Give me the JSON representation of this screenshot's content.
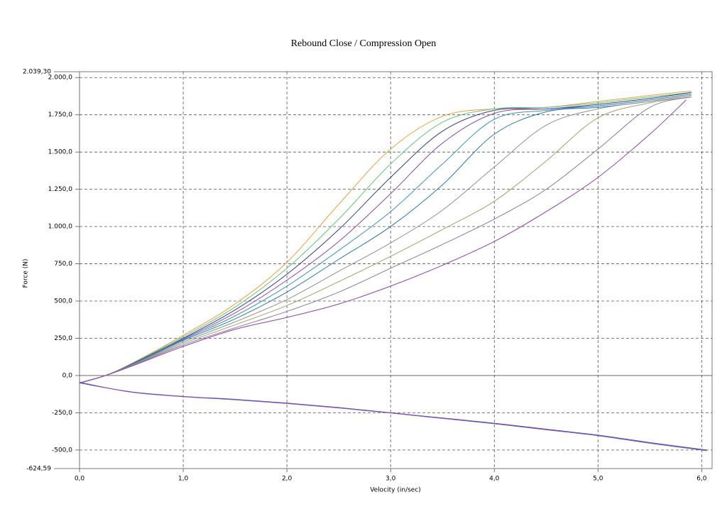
{
  "chart_data": {
    "type": "line",
    "title": "Rebound Close / Compression Open",
    "xlabel": "Velocity (in/sec)",
    "ylabel": "Force (N)",
    "xlim": [
      0,
      6.1
    ],
    "ylim": [
      -624.59,
      2039.3
    ],
    "xticks": [
      {
        "value": 0,
        "label": "0,0"
      },
      {
        "value": 1,
        "label": "1,0"
      },
      {
        "value": 2,
        "label": "2,0"
      },
      {
        "value": 3,
        "label": "3,0"
      },
      {
        "value": 4,
        "label": "4,0"
      },
      {
        "value": 5,
        "label": "5,0"
      },
      {
        "value": 6,
        "label": "6,0"
      }
    ],
    "yticks": [
      {
        "value": -624.59,
        "label": "-624,59"
      },
      {
        "value": -500,
        "label": "-500,0"
      },
      {
        "value": -250,
        "label": "-250,0"
      },
      {
        "value": 0,
        "label": "0,0"
      },
      {
        "value": 250,
        "label": "250,0"
      },
      {
        "value": 500,
        "label": "500,0"
      },
      {
        "value": 750,
        "label": "750,0"
      },
      {
        "value": 1000,
        "label": "1.000,0"
      },
      {
        "value": 1250,
        "label": "1.250,0"
      },
      {
        "value": 1500,
        "label": "1.500,0"
      },
      {
        "value": 1750,
        "label": "1.750,0"
      },
      {
        "value": 2000,
        "label": "2.000,0"
      },
      {
        "value": 2039.3,
        "label": "2.039,30"
      }
    ],
    "grid": true,
    "series": [
      {
        "color": "#e8a33a",
        "x": [
          0,
          0.25,
          0.5,
          1,
          1.5,
          2,
          2.5,
          3,
          3.5,
          4,
          4.5,
          5,
          5.5,
          5.9
        ],
        "values": [
          -50,
          0,
          80,
          270,
          480,
          760,
          1150,
          1520,
          1740,
          1790,
          1800,
          1840,
          1880,
          1910
        ]
      },
      {
        "color": "#5cc87a",
        "x": [
          0,
          0.25,
          0.5,
          1,
          1.5,
          2,
          2.5,
          3,
          3.5,
          4,
          4.5,
          5,
          5.5,
          5.9
        ],
        "values": [
          -50,
          0,
          78,
          260,
          460,
          720,
          1050,
          1420,
          1700,
          1790,
          1800,
          1830,
          1870,
          1900
        ]
      },
      {
        "color": "#3a3a8a",
        "x": [
          0,
          0.25,
          0.5,
          1,
          1.5,
          2,
          2.5,
          3,
          3.5,
          4,
          4.5,
          5,
          5.5,
          5.9
        ],
        "values": [
          -50,
          0,
          76,
          250,
          440,
          680,
          980,
          1330,
          1640,
          1780,
          1790,
          1820,
          1860,
          1900
        ]
      },
      {
        "color": "#8a4ab0",
        "x": [
          0,
          0.25,
          0.5,
          1,
          1.5,
          2,
          2.5,
          3,
          3.5,
          4,
          4.5,
          5,
          5.5,
          5.9
        ],
        "values": [
          -50,
          0,
          74,
          245,
          420,
          640,
          900,
          1220,
          1560,
          1760,
          1790,
          1810,
          1850,
          1890
        ]
      },
      {
        "color": "#3a9ab0",
        "x": [
          0,
          0.25,
          0.5,
          1,
          1.5,
          2,
          2.5,
          3,
          3.5,
          4,
          4.5,
          5,
          5.5,
          5.9
        ],
        "values": [
          -50,
          0,
          72,
          240,
          400,
          600,
          840,
          1100,
          1420,
          1720,
          1780,
          1810,
          1850,
          1890
        ]
      },
      {
        "color": "#2a7ab0",
        "x": [
          0,
          0.25,
          0.5,
          1,
          1.5,
          2,
          2.5,
          3,
          3.5,
          4,
          4.5,
          5,
          5.5,
          5.9
        ],
        "values": [
          -50,
          0,
          70,
          235,
          380,
          560,
          780,
          1000,
          1280,
          1620,
          1770,
          1800,
          1840,
          1880
        ]
      },
      {
        "color": "#909090",
        "x": [
          0,
          0.25,
          0.5,
          1,
          1.5,
          2,
          2.5,
          3,
          3.5,
          4,
          4.5,
          5,
          5.5,
          5.9
        ],
        "values": [
          -50,
          0,
          68,
          225,
          360,
          510,
          700,
          890,
          1110,
          1400,
          1680,
          1790,
          1840,
          1880
        ]
      },
      {
        "color": "#a0a070",
        "x": [
          0,
          0.25,
          0.5,
          1,
          1.5,
          2,
          2.5,
          3,
          3.5,
          4,
          4.5,
          5,
          5.5,
          5.9
        ],
        "values": [
          -50,
          0,
          66,
          215,
          340,
          470,
          630,
          800,
          980,
          1170,
          1440,
          1730,
          1830,
          1870
        ]
      },
      {
        "color": "#8a7aa0",
        "x": [
          0,
          0.25,
          0.5,
          1,
          1.5,
          2,
          2.5,
          3,
          3.5,
          4,
          4.5,
          5,
          5.5,
          5.9
        ],
        "values": [
          -50,
          0,
          64,
          205,
          320,
          430,
          560,
          720,
          880,
          1050,
          1250,
          1520,
          1800,
          1870
        ]
      },
      {
        "color": "#9040b0",
        "x": [
          0,
          0.25,
          0.5,
          1,
          1.5,
          2,
          2.5,
          3,
          3.5,
          4,
          4.5,
          5,
          5.5,
          5.85
        ],
        "values": [
          -50,
          0,
          62,
          195,
          310,
          390,
          480,
          600,
          740,
          900,
          1100,
          1330,
          1620,
          1850
        ]
      },
      {
        "color": "#3a5ab0",
        "x": [
          0,
          0.5,
          1,
          1.5,
          2,
          2.5,
          3,
          3.5,
          4,
          4.5,
          5,
          5.5,
          6.05
        ],
        "values": [
          -50,
          -110,
          -140,
          -160,
          -185,
          -215,
          -250,
          -285,
          -320,
          -360,
          -400,
          -450,
          -500
        ]
      },
      {
        "color": "#9050b0",
        "x": [
          0,
          0.5,
          1,
          1.5,
          2,
          2.5,
          3,
          3.5,
          4,
          4.5,
          5,
          5.5,
          6.05
        ],
        "values": [
          -45,
          -112,
          -142,
          -163,
          -188,
          -218,
          -252,
          -288,
          -324,
          -364,
          -404,
          -455,
          -505
        ]
      }
    ]
  }
}
